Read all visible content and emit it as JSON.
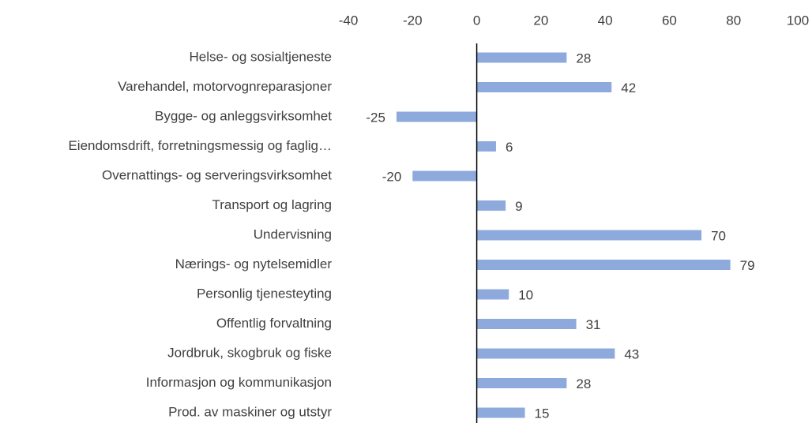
{
  "chart_data": {
    "type": "bar",
    "orientation": "horizontal",
    "categories": [
      "Helse- og sosialtjeneste",
      "Varehandel, motorvognreparasjoner",
      "Bygge- og anleggsvirksomhet",
      "Eiendomsdrift, forretningsmessig og faglig…",
      "Overnattings- og serveringsvirksomhet",
      "Transport og lagring",
      "Undervisning",
      "Nærings- og nytelsemidler",
      "Personlig tjenesteyting",
      "Offentlig forvaltning",
      "Jordbruk, skogbruk og fiske",
      "Informasjon og kommunikasjon",
      "Prod. av maskiner og utstyr"
    ],
    "values": [
      28,
      42,
      -25,
      6,
      -20,
      9,
      70,
      79,
      10,
      31,
      43,
      28,
      15
    ],
    "color": "#8eaadc",
    "xlim": [
      -40,
      100
    ],
    "xticks": [
      -40,
      -20,
      0,
      20,
      40,
      60,
      80,
      100
    ]
  }
}
